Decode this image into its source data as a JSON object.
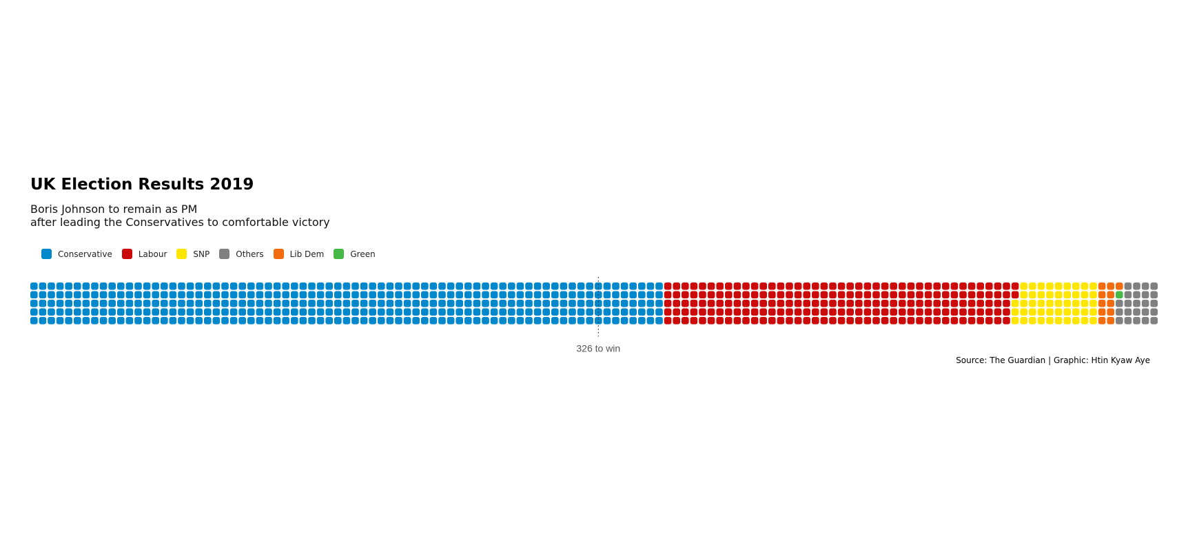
{
  "header": {
    "title": "UK Election Results 2019",
    "subtitle_line1": "Boris Johnson to remain as PM",
    "subtitle_line2": "after leading the Conservatives to comfortable victory"
  },
  "footer": {
    "source": "Source: The Guardian | Graphic: Htin Kyaw Aye"
  },
  "chart_data": {
    "type": "waffle",
    "title": "UK Election Results 2019",
    "subtitle": "Boris Johnson to remain as PM after leading the Conservatives to comfortable victory",
    "rows": 5,
    "fill_order": "column-major, left to right",
    "categories": [
      "Conservative",
      "Labour",
      "SNP",
      "Others",
      "Lib Dem",
      "Green"
    ],
    "legend_order": [
      "Conservative",
      "Labour",
      "SNP",
      "Others",
      "Lib Dem",
      "Green"
    ],
    "legend_position": "top-left",
    "series": [
      {
        "name": "Conservative",
        "value": 365,
        "color": "#0087CC"
      },
      {
        "name": "Labour",
        "value": 202,
        "color": "#CC0A0A"
      },
      {
        "name": "SNP",
        "value": 48,
        "color": "#FFE600"
      },
      {
        "name": "Lib Dem",
        "value": 11,
        "color": "#F26B0F"
      },
      {
        "name": "Green",
        "value": 1,
        "color": "#46B846"
      },
      {
        "name": "Others",
        "value": 23,
        "color": "#808080"
      }
    ],
    "total": 650,
    "threshold": {
      "value": 326,
      "label": "326 to win"
    }
  }
}
